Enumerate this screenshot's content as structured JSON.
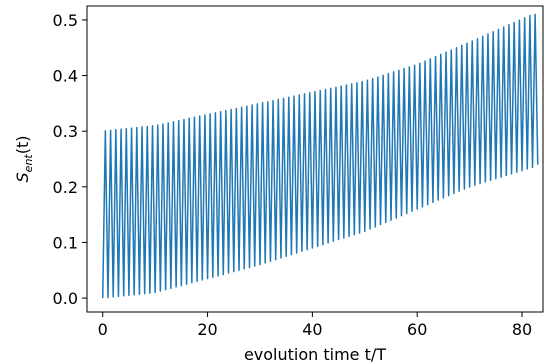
{
  "chart_data": {
    "type": "line",
    "xlabel": "evolution time t/T",
    "ylabel_main": "S",
    "ylabel_sub": "ent",
    "ylabel_suffix": "(t)",
    "xlim": [
      -3,
      84
    ],
    "ylim": [
      -0.025,
      0.525
    ],
    "xticks": [
      0,
      20,
      40,
      60,
      80
    ],
    "yticks": [
      0.0,
      0.1,
      0.2,
      0.3,
      0.4,
      0.5
    ],
    "xtick_labels": [
      "0",
      "20",
      "40",
      "60",
      "80"
    ],
    "ytick_labels": [
      "0.0",
      "0.1",
      "0.2",
      "0.3",
      "0.4",
      "0.5"
    ],
    "grid": false,
    "legend": "none",
    "series": [
      {
        "color": "#1f77b4",
        "period": 1.0,
        "x_start": 0.0,
        "x_end": 82.8,
        "upper_envelope": {
          "x": [
            0,
            10,
            20,
            30,
            40,
            50,
            60,
            70,
            82
          ],
          "y": [
            0.3,
            0.31,
            0.33,
            0.35,
            0.37,
            0.39,
            0.42,
            0.46,
            0.51
          ]
        },
        "lower_envelope": {
          "x": [
            0,
            10,
            20,
            30,
            40,
            50,
            60,
            70,
            82
          ],
          "y": [
            0.0,
            0.01,
            0.035,
            0.06,
            0.09,
            0.12,
            0.16,
            0.2,
            0.235
          ]
        },
        "final_value": 0.24
      }
    ]
  }
}
